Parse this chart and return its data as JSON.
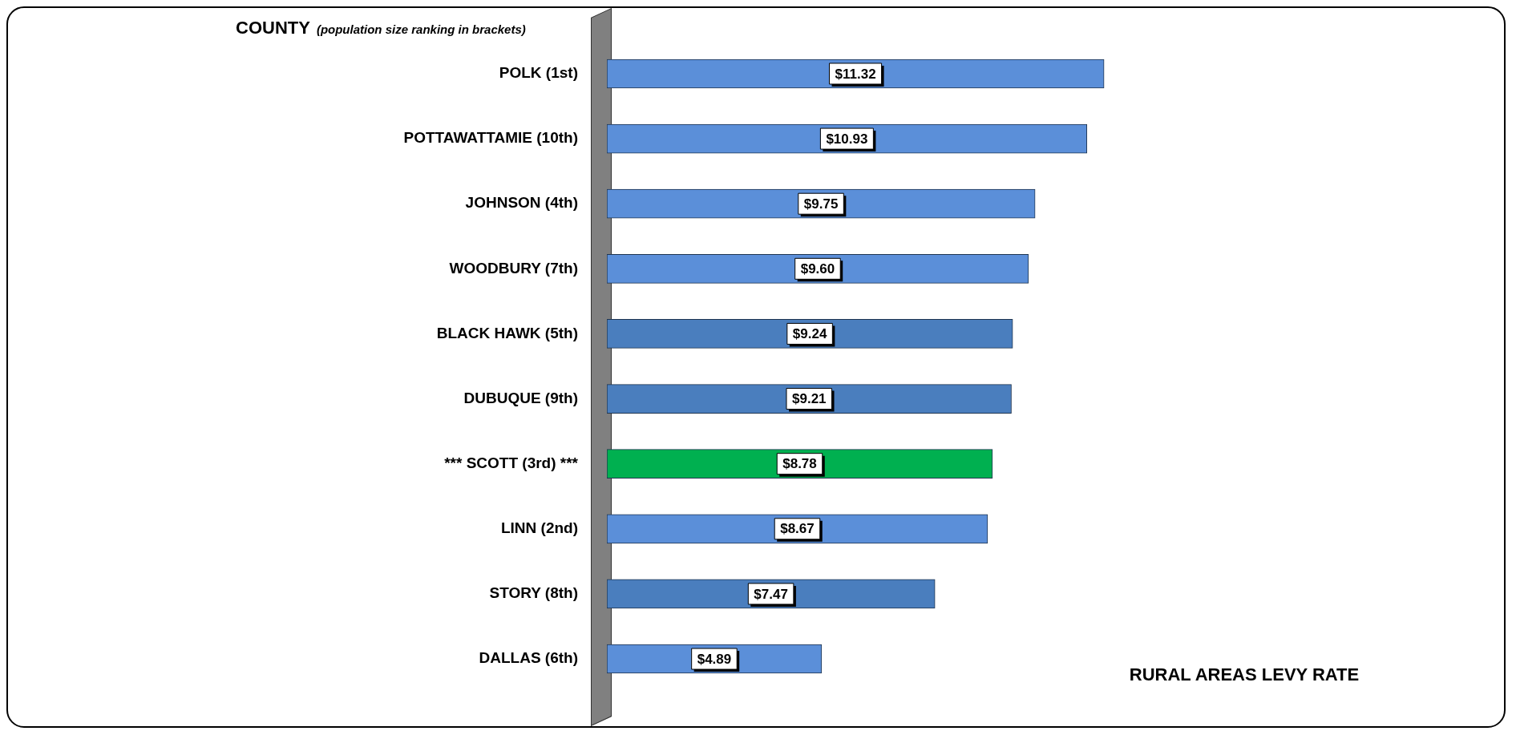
{
  "chart_data": {
    "type": "bar",
    "orientation": "horizontal",
    "title": "COUNTY",
    "subtitle": "(population size ranking in brackets)",
    "xlabel": "RURAL AREAS LEVY RATE",
    "categories": [
      "POLK (1st)",
      "POTTAWATTAMIE (10th)",
      "JOHNSON (4th)",
      "WOODBURY (7th)",
      "BLACK HAWK (5th)",
      "DUBUQUE (9th)",
      "*** SCOTT (3rd) ***",
      "LINN (2nd)",
      "STORY (8th)",
      "DALLAS (6th)"
    ],
    "values": [
      11.32,
      10.93,
      9.75,
      9.6,
      9.24,
      9.21,
      8.78,
      8.67,
      7.47,
      4.89
    ],
    "value_labels": [
      "$11.32",
      "$10.93",
      "$9.75",
      "$9.60",
      "$9.24",
      "$9.21",
      "$8.78",
      "$8.67",
      "$7.47",
      "$4.89"
    ],
    "colors": [
      "#5b8fd9",
      "#5b8fd9",
      "#5b8fd9",
      "#5b8fd9",
      "#4a7ebe",
      "#4a7ebe",
      "#00b050",
      "#5b8fd9",
      "#4a7ebe",
      "#5b8fd9"
    ],
    "grid": false,
    "legend": false
  }
}
